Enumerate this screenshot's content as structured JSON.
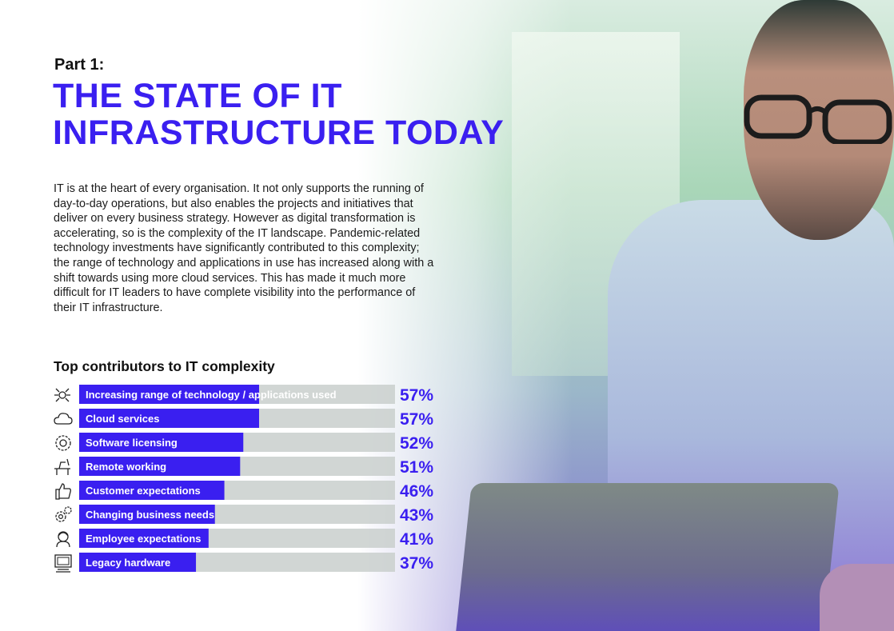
{
  "part_label": "Part 1:",
  "title": "THE STATE OF IT INFRASTRUCTURE TODAY",
  "intro": "IT is at the heart of every organisation. It not only supports the running of day-to-day operations, but also enables the projects and initiatives that deliver on every business strategy. However as digital transformation is accelerating, so is the complexity of the IT landscape. Pandemic-related technology investments have significantly contributed to this complexity; the range of technology and applications in use has increased along with a shift towards using more cloud services. This has made it much more difficult for IT leaders to have complete visibility into the performance of their IT infrastructure.",
  "colors": {
    "accent": "#3a1ff0",
    "track": "#c9cfcc",
    "bar_text": "#ffffff"
  },
  "chart_data": {
    "type": "bar",
    "orientation": "horizontal",
    "title": "Top contributors to IT complexity",
    "unit": "%",
    "xlim": [
      0,
      100
    ],
    "categories": [
      "Increasing range of technology / applications used",
      "Cloud services",
      "Software licensing",
      "Remote working",
      "Customer expectations",
      "Changing business needs",
      "Employee expectations",
      "Legacy hardware"
    ],
    "values": [
      57,
      57,
      52,
      51,
      46,
      43,
      41,
      37
    ],
    "value_labels": [
      "57%",
      "57%",
      "52%",
      "51%",
      "46%",
      "43%",
      "41%",
      "37%"
    ],
    "icons": [
      "network-gears-icon",
      "cloud-icon",
      "license-badge-icon",
      "desk-icon",
      "thumbs-up-icon",
      "gears-icon",
      "person-icon",
      "computer-icon"
    ]
  }
}
